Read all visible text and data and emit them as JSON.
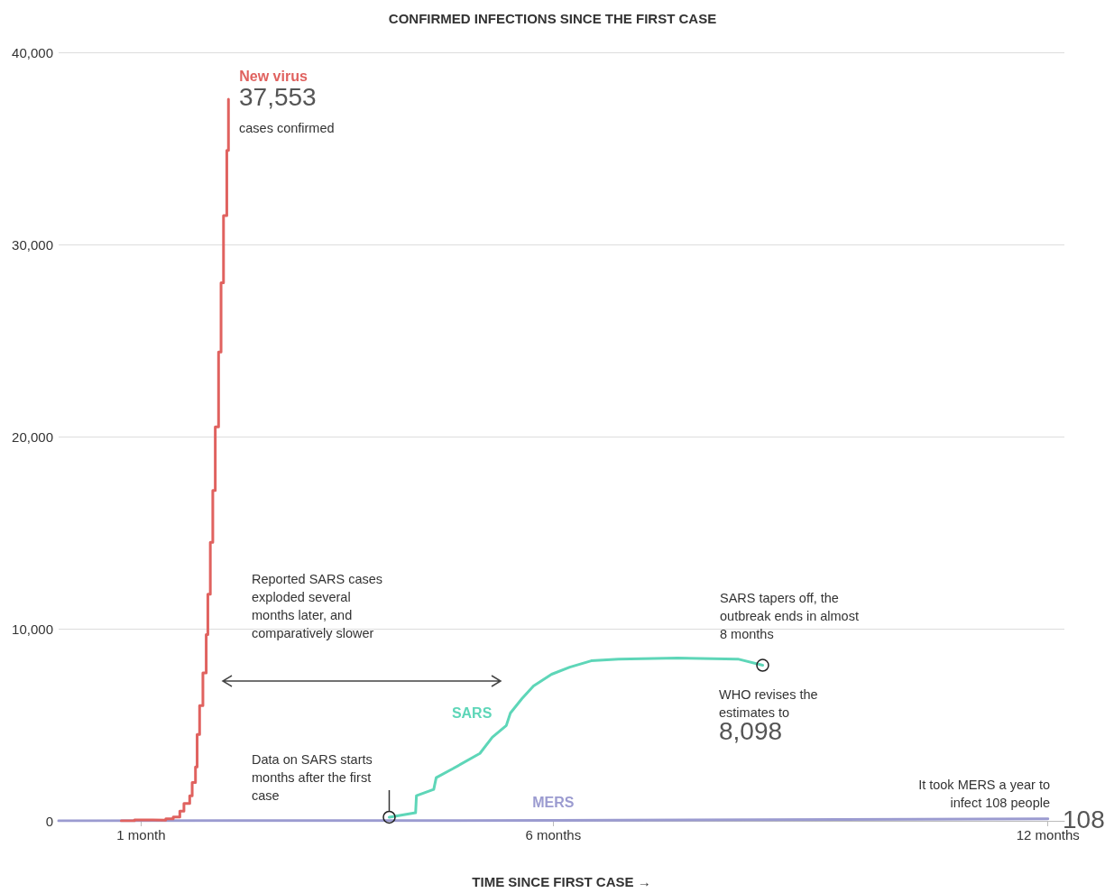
{
  "chart_data": {
    "type": "line",
    "title": "CONFIRMED INFECTIONS SINCE THE FIRST CASE",
    "xlabel": "TIME SINCE FIRST CASE →",
    "xlim": [
      0,
      12.2
    ],
    "xticks": [
      {
        "value": 1,
        "label": "1 month"
      },
      {
        "value": 6,
        "label": "6 months"
      },
      {
        "value": 12,
        "label": "12 months"
      }
    ],
    "ylim": [
      0,
      40000
    ],
    "yticks": [
      {
        "value": 0,
        "label": "0"
      },
      {
        "value": 10000,
        "label": "10,000"
      },
      {
        "value": 20000,
        "label": "20,000"
      },
      {
        "value": 30000,
        "label": "30,000"
      },
      {
        "value": 40000,
        "label": "40,000"
      }
    ],
    "grid": "y",
    "legend": false,
    "series": [
      {
        "name": "New virus",
        "type": "step",
        "color": "#e0625f",
        "x": [
          0.76,
          0.92,
          1.14,
          1.3,
          1.39,
          1.47,
          1.52,
          1.59,
          1.62,
          1.66,
          1.68,
          1.71,
          1.75,
          1.79,
          1.81,
          1.84,
          1.87,
          1.9,
          1.94,
          1.97,
          2.0,
          2.04,
          2.06
        ],
        "values": [
          0,
          50,
          40,
          100,
          200,
          500,
          900,
          1300,
          2000,
          2800,
          4500,
          6000,
          7700,
          9700,
          11800,
          14500,
          17200,
          20500,
          24400,
          28000,
          31500,
          34900,
          37553
        ]
      },
      {
        "name": "SARS",
        "type": "line",
        "color": "#5ed6b8",
        "x": [
          4.01,
          4.33,
          4.34,
          4.55,
          4.58,
          4.78,
          5.11,
          5.26,
          5.43,
          5.48,
          5.62,
          5.76,
          5.98,
          6.2,
          6.46,
          6.79,
          7.51,
          8.24,
          8.54
        ],
        "values": [
          190,
          420,
          1310,
          1640,
          2250,
          2710,
          3510,
          4350,
          4960,
          5610,
          6360,
          7020,
          7630,
          8000,
          8330,
          8420,
          8470,
          8420,
          8098
        ]
      },
      {
        "name": "MERS",
        "type": "line",
        "color": "#9b9bd0",
        "x": [
          0,
          6,
          12
        ],
        "values": [
          0,
          20,
          108
        ]
      }
    ],
    "annotations": [
      "37,553",
      "cases confirmed",
      "Reported SARS cases\nexploded several\nmonths later, and\ncomparatively slower",
      "SARS tapers off, the\noutbreak ends in almost\n8 months",
      "WHO revises the\nestimates to",
      "8,098",
      "Data on SARS starts\nmonths after the first\ncase",
      "It took MERS a year to\ninfect 108 people",
      "108"
    ]
  }
}
